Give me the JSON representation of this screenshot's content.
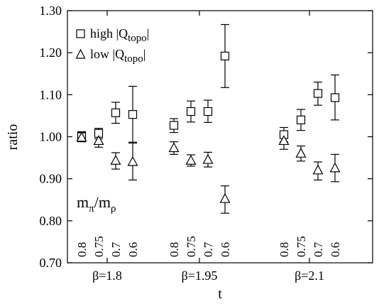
{
  "chart_data": {
    "type": "scatter",
    "xlabel": "t",
    "ylabel": "ratio",
    "ylim": [
      0.7,
      1.3
    ],
    "yticks": [
      "0.70",
      "0.80",
      "0.90",
      "1.00",
      "1.10",
      "1.20",
      "1.30"
    ],
    "annotation": {
      "main": "m",
      "sub1": "π",
      "slash": "/",
      "main2": "m",
      "sub2": "ρ"
    },
    "groups": [
      {
        "label": "β=1.8",
        "sublabels": [
          "0.8",
          "0.75",
          "0.7",
          "0.6"
        ]
      },
      {
        "label": "β=1.95",
        "sublabels": [
          "0.8",
          "0.75",
          "0.7",
          "0.6"
        ]
      },
      {
        "label": "β=2.1",
        "sublabels": [
          "0.8",
          "0.75",
          "0.7",
          "0.6"
        ]
      }
    ],
    "series": [
      {
        "name": "high |Q",
        "name_sub": "topo",
        "name_end": "|",
        "marker": "square",
        "points": [
          {
            "group": 0,
            "idx": 0,
            "y": 1.0,
            "lo": 0.99,
            "hi": 1.012
          },
          {
            "group": 0,
            "idx": 1,
            "y": 1.008,
            "lo": 0.995,
            "hi": 1.02
          },
          {
            "group": 0,
            "idx": 2,
            "y": 1.057,
            "lo": 1.032,
            "hi": 1.082
          },
          {
            "group": 0,
            "idx": 3,
            "y": 1.053,
            "lo": 0.987,
            "hi": 1.12
          },
          {
            "group": 1,
            "idx": 0,
            "y": 1.027,
            "lo": 1.01,
            "hi": 1.043
          },
          {
            "group": 1,
            "idx": 1,
            "y": 1.06,
            "lo": 1.035,
            "hi": 1.085
          },
          {
            "group": 1,
            "idx": 2,
            "y": 1.06,
            "lo": 1.034,
            "hi": 1.087
          },
          {
            "group": 1,
            "idx": 3,
            "y": 1.192,
            "lo": 1.117,
            "hi": 1.267
          },
          {
            "group": 2,
            "idx": 0,
            "y": 1.005,
            "lo": 0.988,
            "hi": 1.022
          },
          {
            "group": 2,
            "idx": 1,
            "y": 1.04,
            "lo": 1.015,
            "hi": 1.065
          },
          {
            "group": 2,
            "idx": 2,
            "y": 1.103,
            "lo": 1.075,
            "hi": 1.13
          },
          {
            "group": 2,
            "idx": 3,
            "y": 1.093,
            "lo": 1.04,
            "hi": 1.147
          }
        ]
      },
      {
        "name": "low  |Q",
        "name_sub": "topo",
        "name_end": "|",
        "marker": "triangle",
        "points": [
          {
            "group": 0,
            "idx": 0,
            "y": 0.998,
            "lo": 0.988,
            "hi": 1.01
          },
          {
            "group": 0,
            "idx": 1,
            "y": 0.99,
            "lo": 0.975,
            "hi": 1.005
          },
          {
            "group": 0,
            "idx": 2,
            "y": 0.943,
            "lo": 0.923,
            "hi": 0.962
          },
          {
            "group": 0,
            "idx": 3,
            "y": 0.94,
            "lo": 0.897,
            "hi": 0.985
          },
          {
            "group": 1,
            "idx": 0,
            "y": 0.973,
            "lo": 0.958,
            "hi": 0.988
          },
          {
            "group": 1,
            "idx": 1,
            "y": 0.943,
            "lo": 0.93,
            "hi": 0.957
          },
          {
            "group": 1,
            "idx": 2,
            "y": 0.945,
            "lo": 0.928,
            "hi": 0.963
          },
          {
            "group": 1,
            "idx": 3,
            "y": 0.852,
            "lo": 0.818,
            "hi": 0.883
          },
          {
            "group": 2,
            "idx": 0,
            "y": 0.99,
            "lo": 0.97,
            "hi": 1.008
          },
          {
            "group": 2,
            "idx": 1,
            "y": 0.96,
            "lo": 0.942,
            "hi": 0.978
          },
          {
            "group": 2,
            "idx": 2,
            "y": 0.92,
            "lo": 0.897,
            "hi": 0.94
          },
          {
            "group": 2,
            "idx": 3,
            "y": 0.925,
            "lo": 0.893,
            "hi": 0.958
          }
        ]
      }
    ],
    "legend_position": "top-left",
    "grid": false
  }
}
